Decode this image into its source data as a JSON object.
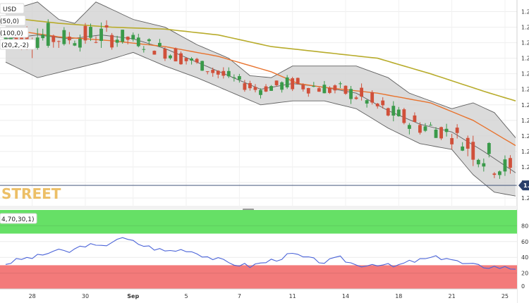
{
  "chart_data": [
    {
      "type": "candlestick",
      "symbol_label": "USD",
      "indicator_labels": [
        "(50,0)",
        "(100,0)",
        "(20,2,-2)"
      ],
      "watermark": "STREET",
      "current_price_label": "1.2",
      "y_tick_labels": [
        "1.2",
        "1.2",
        "1.2",
        "1.2",
        "1.2",
        "1.2",
        "1.2",
        "1.2",
        "1.2",
        "1.2",
        "1.2",
        "1.2",
        "1.2"
      ],
      "y_tick_values": [
        1.296,
        1.288,
        1.28,
        1.272,
        1.264,
        1.256,
        1.248,
        1.24,
        1.232,
        1.224,
        1.216,
        1.208,
        1.2
      ],
      "ylim": [
        1.196,
        1.302
      ],
      "current_price": 1.2065,
      "x_tick_labels": [
        "28",
        "30",
        "Sep",
        "5",
        "7",
        "11",
        "14",
        "18",
        "21",
        "25"
      ],
      "x_tick_index": [
        5,
        15,
        24,
        34,
        44,
        54,
        64,
        74,
        84,
        94
      ],
      "n_bars": 96,
      "colors": {
        "up": "#3a9a4a",
        "down": "#d0503a",
        "sma50": "#e8732e",
        "sma100": "#b8ac2c",
        "bands": "#606060",
        "band_fill": "#cfcfcf"
      },
      "sma50_anchors": [
        [
          0,
          1.287
        ],
        [
          10,
          1.283
        ],
        [
          20,
          1.281
        ],
        [
          30,
          1.278
        ],
        [
          40,
          1.273
        ],
        [
          50,
          1.265
        ],
        [
          55,
          1.259
        ],
        [
          60,
          1.257
        ],
        [
          70,
          1.254
        ],
        [
          80,
          1.249
        ],
        [
          88,
          1.24
        ],
        [
          96,
          1.227
        ]
      ],
      "sma100_anchors": [
        [
          0,
          1.293
        ],
        [
          10,
          1.29
        ],
        [
          20,
          1.288
        ],
        [
          30,
          1.287
        ],
        [
          40,
          1.284
        ],
        [
          50,
          1.278
        ],
        [
          60,
          1.275
        ],
        [
          70,
          1.272
        ],
        [
          80,
          1.264
        ],
        [
          90,
          1.255
        ],
        [
          96,
          1.25
        ]
      ],
      "bb_mid_anchors": [
        [
          0,
          1.282
        ],
        [
          6,
          1.284
        ],
        [
          12,
          1.282
        ],
        [
          18,
          1.284
        ],
        [
          24,
          1.282
        ],
        [
          30,
          1.277
        ],
        [
          36,
          1.27
        ],
        [
          42,
          1.263
        ],
        [
          48,
          1.256
        ],
        [
          54,
          1.259
        ],
        [
          60,
          1.257
        ],
        [
          66,
          1.254
        ],
        [
          72,
          1.245
        ],
        [
          78,
          1.238
        ],
        [
          84,
          1.234
        ],
        [
          90,
          1.224
        ],
        [
          96,
          1.213
        ]
      ],
      "bb_up_anchors": [
        [
          0,
          1.296
        ],
        [
          6,
          1.301
        ],
        [
          10,
          1.292
        ],
        [
          13,
          1.29
        ],
        [
          17,
          1.301
        ],
        [
          24,
          1.292
        ],
        [
          30,
          1.288
        ],
        [
          36,
          1.279
        ],
        [
          42,
          1.272
        ],
        [
          46,
          1.263
        ],
        [
          50,
          1.262
        ],
        [
          54,
          1.268
        ],
        [
          60,
          1.268
        ],
        [
          66,
          1.268
        ],
        [
          72,
          1.262
        ],
        [
          76,
          1.254
        ],
        [
          80,
          1.25
        ],
        [
          84,
          1.246
        ],
        [
          88,
          1.249
        ],
        [
          92,
          1.244
        ],
        [
          96,
          1.231
        ]
      ],
      "bb_lo_anchors": [
        [
          0,
          1.27
        ],
        [
          6,
          1.262
        ],
        [
          12,
          1.266
        ],
        [
          18,
          1.27
        ],
        [
          24,
          1.275
        ],
        [
          30,
          1.268
        ],
        [
          36,
          1.262
        ],
        [
          42,
          1.255
        ],
        [
          48,
          1.248
        ],
        [
          54,
          1.25
        ],
        [
          60,
          1.25
        ],
        [
          66,
          1.246
        ],
        [
          72,
          1.236
        ],
        [
          78,
          1.228
        ],
        [
          84,
          1.225
        ],
        [
          88,
          1.212
        ],
        [
          92,
          1.203
        ],
        [
          96,
          1.201
        ]
      ]
    },
    {
      "type": "line",
      "name_label": "4,70,30,1)",
      "y_tick_labels": [
        "80",
        "60",
        "40",
        "20",
        "0"
      ],
      "y_tick_values": [
        80,
        60,
        40,
        20,
        0
      ],
      "ylim": [
        0,
        100
      ],
      "overbought": 70,
      "oversold": 30,
      "colors": {
        "line": "#4a63d8",
        "overbought_fill": "#66e066",
        "oversold_fill": "#f37a7a"
      },
      "rsi_anchors": [
        [
          0,
          32
        ],
        [
          3,
          38
        ],
        [
          6,
          41
        ],
        [
          9,
          48
        ],
        [
          12,
          47
        ],
        [
          15,
          56
        ],
        [
          18,
          53
        ],
        [
          21,
          64
        ],
        [
          23,
          62
        ],
        [
          26,
          55
        ],
        [
          30,
          48
        ],
        [
          34,
          50
        ],
        [
          38,
          41
        ],
        [
          42,
          33
        ],
        [
          46,
          29
        ],
        [
          50,
          36
        ],
        [
          54,
          44
        ],
        [
          57,
          38
        ],
        [
          60,
          34
        ],
        [
          63,
          39
        ],
        [
          66,
          30
        ],
        [
          70,
          32
        ],
        [
          73,
          28
        ],
        [
          76,
          34
        ],
        [
          80,
          39
        ],
        [
          83,
          40
        ],
        [
          86,
          32
        ],
        [
          89,
          29
        ],
        [
          92,
          28
        ],
        [
          96,
          26
        ]
      ]
    }
  ]
}
